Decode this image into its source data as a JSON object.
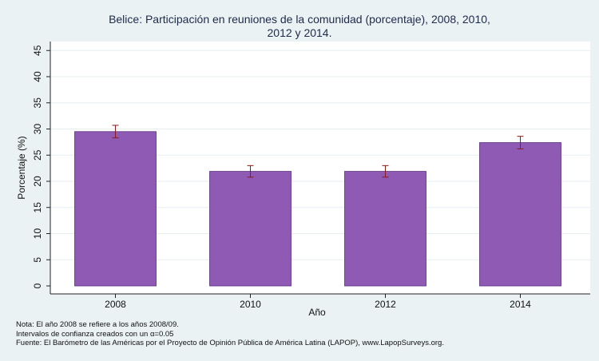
{
  "chart_data": {
    "type": "bar",
    "title_lines": [
      "Belice: Participación en reuniones de la comunidad (porcentaje), 2008, 2010,",
      "2012 y 2014."
    ],
    "xlabel": "Año",
    "ylabel": "Porcentaje (%)",
    "categories": [
      "2008",
      "2010",
      "2012",
      "2014"
    ],
    "values": [
      29.5,
      21.9,
      21.9,
      27.4
    ],
    "ci_low": [
      28.3,
      20.8,
      20.8,
      26.2
    ],
    "ci_high": [
      30.7,
      23.0,
      23.0,
      28.6
    ],
    "ylim": [
      0,
      47
    ],
    "yticks": [
      0,
      5,
      10,
      15,
      20,
      25,
      30,
      35,
      40,
      45
    ],
    "grid": true,
    "legend": "none",
    "colors": {
      "bar_fill": "#8e5ab4",
      "bar_stroke": "#5a2e80",
      "error_bar": "#8b1a1a",
      "grid": "#e7eef0",
      "plot_bg": "#ffffff",
      "page_bg": "#eaf2f3"
    }
  },
  "notes": [
    "Nota: El año 2008 se refiere a los años 2008/09.",
    "Intervalos de confianza creados con un α=0.05",
    "Fuente: El Barómetro de las Américas por el Proyecto de Opinión Pública de América Latina (LAPOP), www.LapopSurveys.org."
  ]
}
